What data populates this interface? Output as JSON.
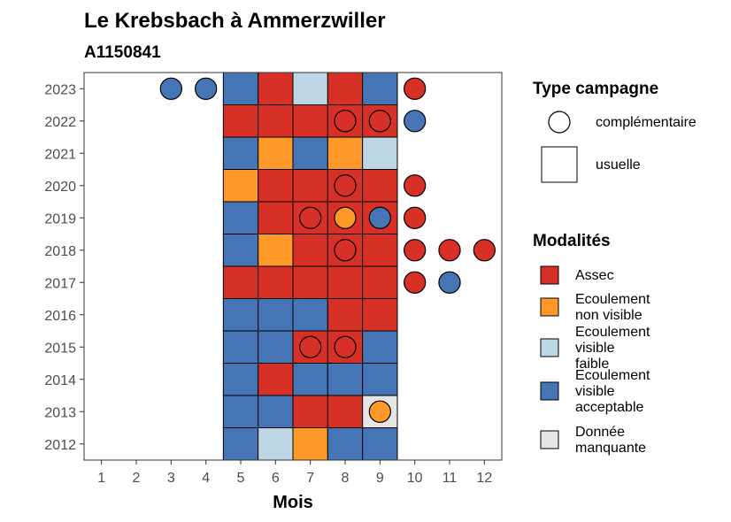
{
  "chart_data": {
    "type": "heatmap",
    "title": "Le Krebsbach à Ammerzwiller",
    "subtitle": "A1150841",
    "xlabel": "Mois",
    "ylabel": "",
    "x_ticks": [
      1,
      2,
      3,
      4,
      5,
      6,
      7,
      8,
      9,
      10,
      11,
      12
    ],
    "y_ticks": [
      2012,
      2013,
      2014,
      2015,
      2016,
      2017,
      2018,
      2019,
      2020,
      2021,
      2022,
      2023
    ],
    "xlim": [
      0.5,
      12.5
    ],
    "ylim": [
      2011.5,
      2023.5
    ],
    "grid": false,
    "colors": {
      "Assec": "#d73027",
      "Ecoulement non visible": "#fe9929",
      "Ecoulement visible faible": "#bdd7e7",
      "Ecoulement visible acceptable": "#4575b4",
      "Donnée manquante": "#e5e5e5"
    },
    "usuelle": [
      {
        "year": 2023,
        "cells": [
          "Ecoulement visible acceptable",
          "Assec",
          "Ecoulement visible faible",
          "Assec",
          "Ecoulement visible acceptable"
        ]
      },
      {
        "year": 2022,
        "cells": [
          "Assec",
          "Assec",
          "Assec",
          "Assec",
          "Assec"
        ]
      },
      {
        "year": 2021,
        "cells": [
          "Ecoulement visible acceptable",
          "Ecoulement non visible",
          "Ecoulement visible acceptable",
          "Ecoulement non visible",
          "Ecoulement visible faible"
        ]
      },
      {
        "year": 2020,
        "cells": [
          "Ecoulement non visible",
          "Assec",
          "Assec",
          "Assec",
          "Assec"
        ]
      },
      {
        "year": 2019,
        "cells": [
          "Ecoulement visible acceptable",
          "Assec",
          "Assec",
          "Assec",
          "Assec"
        ]
      },
      {
        "year": 2018,
        "cells": [
          "Ecoulement visible acceptable",
          "Ecoulement non visible",
          "Assec",
          "Assec",
          "Assec"
        ]
      },
      {
        "year": 2017,
        "cells": [
          "Assec",
          "Assec",
          "Assec",
          "Assec",
          "Assec"
        ]
      },
      {
        "year": 2016,
        "cells": [
          "Ecoulement visible acceptable",
          "Ecoulement visible acceptable",
          "Ecoulement visible acceptable",
          "Assec",
          "Assec"
        ]
      },
      {
        "year": 2015,
        "cells": [
          "Ecoulement visible acceptable",
          "Ecoulement visible acceptable",
          "Assec",
          "Assec",
          "Ecoulement visible acceptable"
        ]
      },
      {
        "year": 2014,
        "cells": [
          "Ecoulement visible acceptable",
          "Assec",
          "Ecoulement visible acceptable",
          "Ecoulement visible acceptable",
          "Ecoulement visible acceptable"
        ]
      },
      {
        "year": 2013,
        "cells": [
          "Ecoulement visible acceptable",
          "Ecoulement visible acceptable",
          "Assec",
          "Assec",
          "Donnée manquante"
        ]
      },
      {
        "year": 2012,
        "cells": [
          "Ecoulement visible acceptable",
          "Ecoulement visible faible",
          "Ecoulement non visible",
          "Ecoulement visible acceptable",
          "Ecoulement visible acceptable"
        ]
      }
    ],
    "usuelle_months": [
      5,
      6,
      7,
      8,
      9
    ],
    "complementaire": [
      {
        "year": 2023,
        "month": 3,
        "value": "Ecoulement visible acceptable"
      },
      {
        "year": 2023,
        "month": 4,
        "value": "Ecoulement visible acceptable"
      },
      {
        "year": 2023,
        "month": 10,
        "value": "Assec"
      },
      {
        "year": 2022,
        "month": 8,
        "value": "Assec"
      },
      {
        "year": 2022,
        "month": 9,
        "value": "Assec"
      },
      {
        "year": 2022,
        "month": 10,
        "value": "Ecoulement visible acceptable"
      },
      {
        "year": 2020,
        "month": 8,
        "value": "Assec"
      },
      {
        "year": 2020,
        "month": 10,
        "value": "Assec"
      },
      {
        "year": 2019,
        "month": 7,
        "value": "Assec"
      },
      {
        "year": 2019,
        "month": 8,
        "value": "Ecoulement non visible"
      },
      {
        "year": 2019,
        "month": 9,
        "value": "Ecoulement visible acceptable"
      },
      {
        "year": 2019,
        "month": 10,
        "value": "Assec"
      },
      {
        "year": 2018,
        "month": 8,
        "value": "Assec"
      },
      {
        "year": 2018,
        "month": 10,
        "value": "Assec"
      },
      {
        "year": 2018,
        "month": 11,
        "value": "Assec"
      },
      {
        "year": 2018,
        "month": 12,
        "value": "Assec"
      },
      {
        "year": 2017,
        "month": 10,
        "value": "Assec"
      },
      {
        "year": 2017,
        "month": 11,
        "value": "Ecoulement visible acceptable"
      },
      {
        "year": 2015,
        "month": 7,
        "value": "Assec"
      },
      {
        "year": 2015,
        "month": 8,
        "value": "Assec"
      },
      {
        "year": 2013,
        "month": 9,
        "value": "Ecoulement non visible"
      }
    ],
    "legend_campagne": {
      "title": "Type campagne",
      "items": [
        {
          "key": "complementaire",
          "label": "complémentaire"
        },
        {
          "key": "usuelle",
          "label": "usuelle"
        }
      ]
    },
    "legend_modalites": {
      "title": "Modalités",
      "items": [
        {
          "key": "Assec",
          "lines": [
            "Assec"
          ]
        },
        {
          "key": "Ecoulement non visible",
          "lines": [
            "Ecoulement",
            "non visible"
          ]
        },
        {
          "key": "Ecoulement visible faible",
          "lines": [
            "Ecoulement",
            "visible",
            "faible"
          ]
        },
        {
          "key": "Ecoulement visible acceptable",
          "lines": [
            "Ecoulement",
            "visible",
            "acceptable"
          ]
        },
        {
          "key": "Donnée manquante",
          "lines": [
            "Donnée",
            "manquante"
          ]
        }
      ]
    },
    "legend_placement": "right"
  }
}
